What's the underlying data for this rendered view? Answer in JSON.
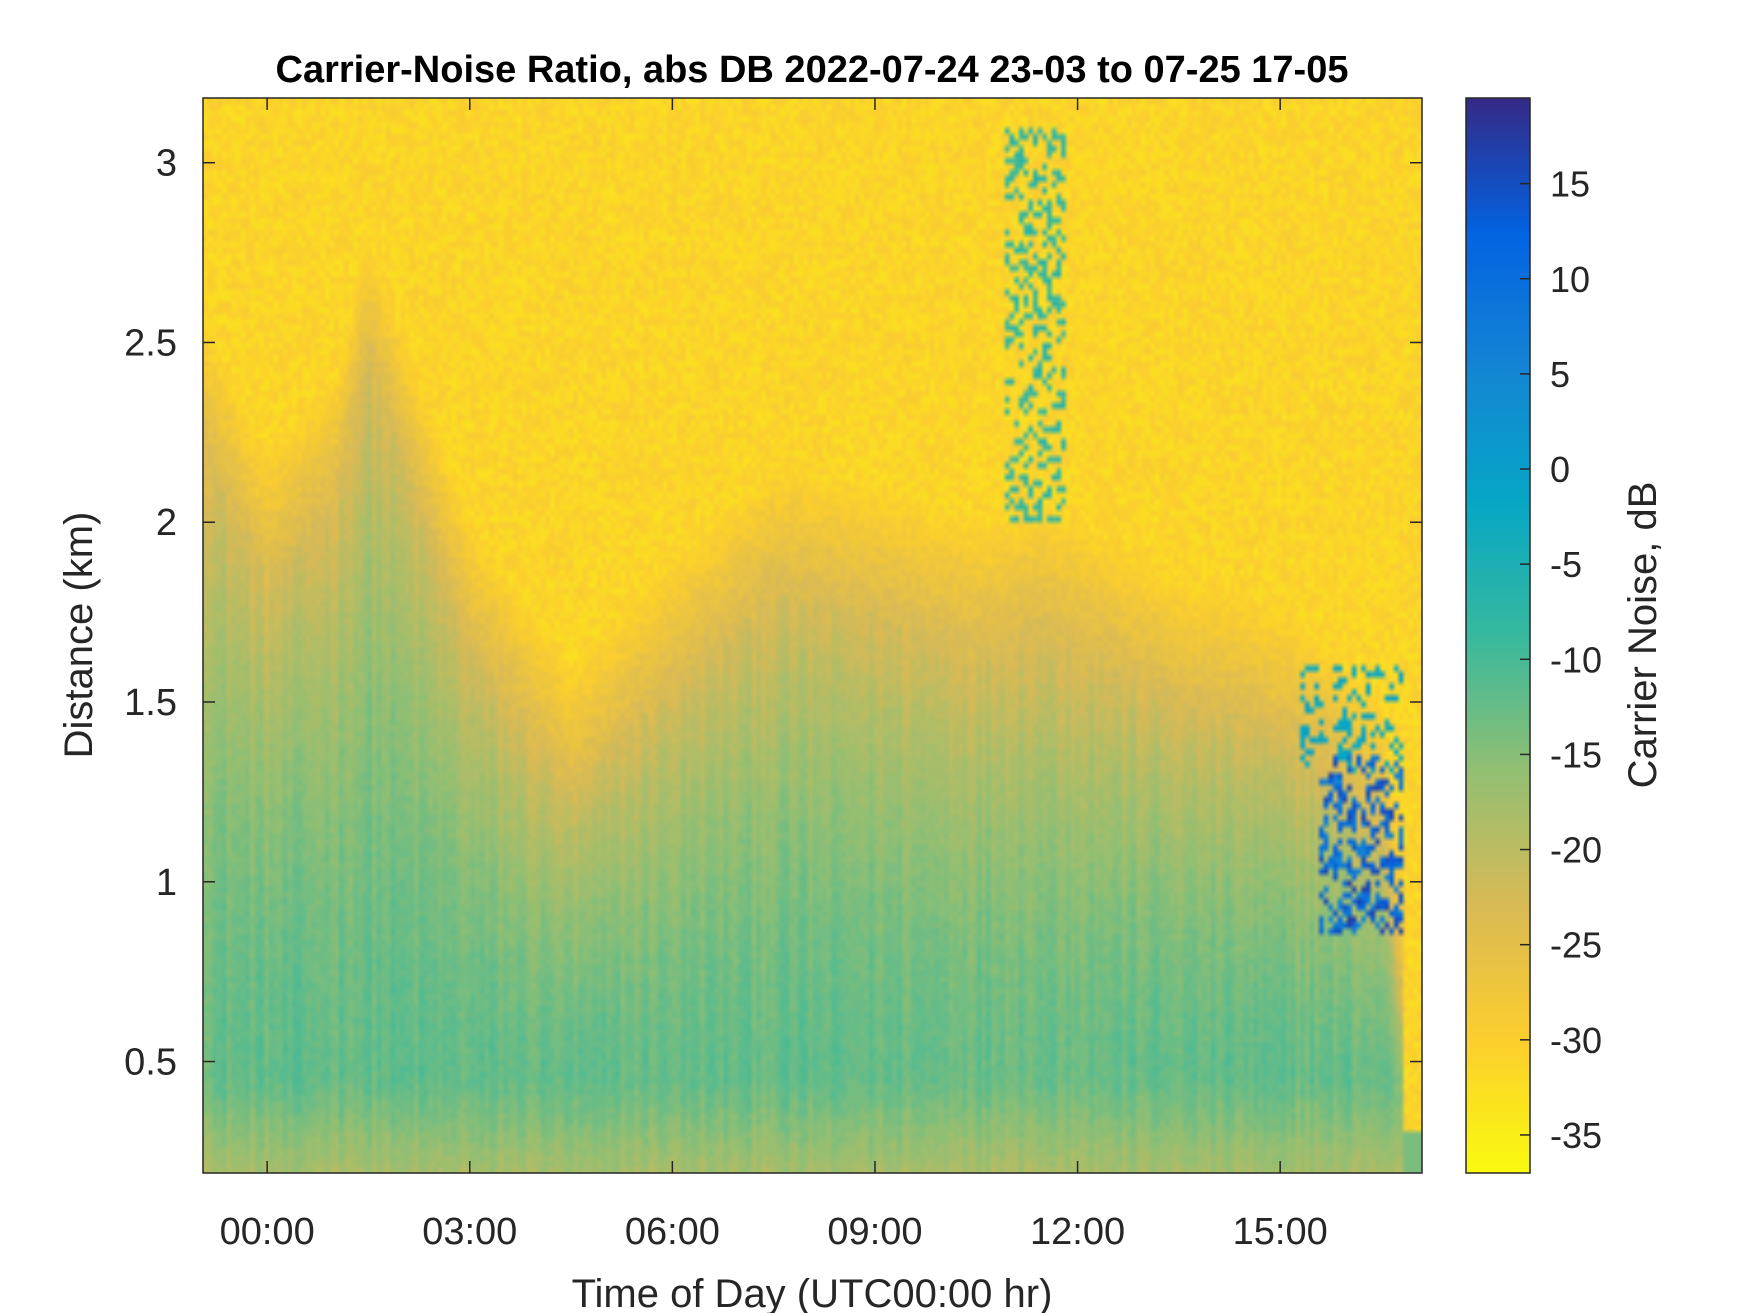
{
  "chart_data": {
    "type": "heatmap",
    "title": "Carrier-Noise Ratio, abs DB 2022-07-24 23-03 to 07-25 17-05",
    "xlabel": "Time of Day (UTC00:00 hr)",
    "ylabel": "Distance (km)",
    "colorbar_label": "Carrier Noise, dB",
    "x_unit": "hours",
    "xlim": [
      -0.95,
      17.1
    ],
    "ylim": [
      0.19,
      3.18
    ],
    "clim": [
      -37,
      19.5
    ],
    "x_ticks": [
      0,
      3,
      6,
      9,
      12,
      15
    ],
    "x_tick_labels": [
      "00:00",
      "03:00",
      "06:00",
      "09:00",
      "12:00",
      "15:00"
    ],
    "y_ticks": [
      0.5,
      1,
      1.5,
      2,
      2.5,
      3
    ],
    "y_tick_labels": [
      "0.5",
      "1",
      "1.5",
      "2",
      "2.5",
      "3"
    ],
    "colorbar_ticks": [
      15,
      10,
      5,
      0,
      -5,
      -10,
      -15,
      -20,
      -25,
      -30,
      -35
    ],
    "colorbar_tick_labels": [
      "15",
      "10",
      "5",
      "0",
      "-5",
      "-10",
      "-15",
      "-20",
      "-25",
      "-30",
      "-35"
    ],
    "colormap": "parula",
    "colormap_stops": [
      "#352a87",
      "#0363e1",
      "#1485d4",
      "#06a7c6",
      "#38b99e",
      "#92bf73",
      "#d9ba56",
      "#fcce2e",
      "#f9fb0e"
    ],
    "grid": false,
    "boundary_layer_top_km": {
      "time_h": [
        -0.95,
        0,
        1,
        1.5,
        3,
        4.5,
        6,
        7.5,
        9,
        10.5,
        11.5,
        12.5,
        13.5,
        14.5,
        15.5,
        16.5,
        17.1
      ],
      "height_km": [
        2.2,
        1.85,
        2.05,
        2.45,
        1.65,
        1.25,
        1.55,
        1.8,
        1.75,
        1.65,
        1.7,
        1.6,
        1.5,
        1.45,
        1.35,
        1.15,
        0.2
      ]
    },
    "values_dB": {
      "noise_background": -31,
      "boundary_layer_top": -23,
      "mixed_layer": -12,
      "near_ground": -18,
      "cloud_peaks": 17
    }
  }
}
